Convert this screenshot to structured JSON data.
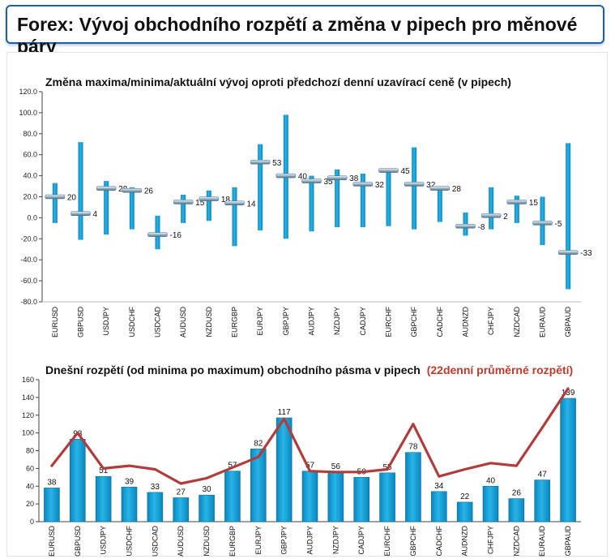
{
  "page_title": "Forex: Vývoj obchodního rozpětí a změna v pipech pro měnové páry",
  "colors": {
    "bar": "#1aa2d8",
    "bar_dark": "#0b7fb1",
    "avg_line": "#b23b3b",
    "title_border": "#1f5fa8"
  },
  "chart_data": [
    {
      "type": "bar",
      "subtype": "range",
      "title": "Změna maxima/minima/aktuální vývoj oproti předchozí denní uzavírací ceně (v pipech)",
      "ylim": [
        -80,
        120
      ],
      "yticks": [
        "120.0",
        "100.0",
        "80.0",
        "60.0",
        "40.0",
        "20.0",
        "0.0",
        "-20.0",
        "-40.0",
        "-60.0",
        "-80.0"
      ],
      "ytick_values": [
        120,
        100,
        80,
        60,
        40,
        20,
        0,
        -20,
        -40,
        -60,
        -80
      ],
      "grid": false,
      "categories": [
        "EURUSD",
        "GBPUSD",
        "USDJPY",
        "USDCHF",
        "USDCAD",
        "AUDUSD",
        "NZDUSD",
        "EURGBP",
        "EURJPY",
        "GBPJPY",
        "AUDJPY",
        "NZDJPY",
        "CADJPY",
        "EURCHF",
        "GBPCHF",
        "CADCHF",
        "AUDNZD",
        "CHFJPY",
        "NZDCAD",
        "EURAUD",
        "GBPAUD"
      ],
      "high": [
        33,
        72,
        35,
        29,
        2,
        22,
        26,
        29,
        70,
        98,
        40,
        46,
        42,
        46,
        67,
        30,
        5,
        29,
        21,
        20,
        71
      ],
      "low": [
        -5,
        -21,
        -16,
        -11,
        -30,
        -5,
        -3,
        -27,
        -12,
        -20,
        -13,
        -9,
        -9,
        -8,
        -11,
        -4,
        -17,
        -11,
        -5,
        -26,
        -68
      ],
      "current": [
        20,
        4,
        28,
        26,
        -16,
        15,
        18,
        14,
        53,
        40,
        35,
        38,
        32,
        45,
        32,
        28,
        -8,
        2,
        15,
        -5,
        -33
      ],
      "labels": [
        "20",
        "4",
        "28",
        "26",
        "-16",
        "15",
        "18",
        "14",
        "53",
        "40",
        "35",
        "38",
        "32",
        "45",
        "32",
        "28",
        "-8",
        "2",
        "15",
        "-5",
        "-33"
      ]
    },
    {
      "type": "bar",
      "title": "Dnešní rozpětí (od minima po maximum) obchodního pásma v pipech",
      "title_red": "(22denní průměrné rozpětí)",
      "ylim": [
        0,
        160
      ],
      "yticks": [
        "160",
        "140",
        "120",
        "100",
        "80",
        "60",
        "40",
        "20",
        "0"
      ],
      "ytick_values": [
        160,
        140,
        120,
        100,
        80,
        60,
        40,
        20,
        0
      ],
      "grid": false,
      "categories": [
        "EURUSD",
        "GBPUSD",
        "USDJPY",
        "USDCHF",
        "USDCAD",
        "AUDUSD",
        "NZDUSD",
        "EURGBP",
        "EURJPY",
        "GBPJPY",
        "AUDJPY",
        "NZDJPY",
        "CADJPY",
        "EURCHF",
        "GBPCHF",
        "CADCHF",
        "AUDNZD",
        "CHFJPY",
        "NZDCAD",
        "EURAUD",
        "GBPAUD"
      ],
      "values": [
        38,
        93,
        51,
        39,
        33,
        27,
        30,
        57,
        82,
        117,
        57,
        56,
        50,
        55,
        78,
        34,
        22,
        40,
        26,
        47,
        139
      ],
      "labels": [
        "38",
        "93",
        "51",
        "39",
        "33",
        "27",
        "30",
        "57",
        "82",
        "117",
        "57",
        "56",
        "50",
        "55",
        "78",
        "34",
        "22",
        "40",
        "26",
        "47",
        "139"
      ],
      "series": [
        {
          "name": "22denní průměrné rozpětí",
          "type": "line",
          "values": [
            63,
            100,
            60,
            63,
            59,
            43,
            49,
            61,
            73,
            116,
            57,
            56,
            56,
            59,
            110,
            51,
            59,
            66,
            63,
            106,
            150
          ]
        }
      ]
    }
  ]
}
